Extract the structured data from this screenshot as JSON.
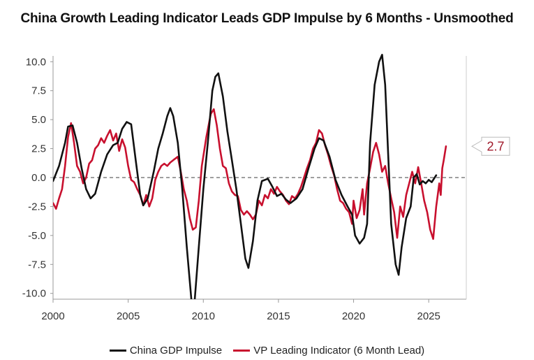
{
  "chart_data": {
    "type": "line",
    "title": "China Growth Leading Indicator Leads GDP Impulse by 6 Months - Unsmoothed",
    "xlabel": "",
    "ylabel": "",
    "xlim": [
      2000,
      2026.5
    ],
    "ylim": [
      -10.5,
      10.5
    ],
    "x_ticks": [
      "2000",
      "2005",
      "2010",
      "2015",
      "2020",
      "2025"
    ],
    "y_ticks": [
      "10.0",
      "7.5",
      "5.0",
      "2.5",
      "0.0",
      "-2.5",
      "-5.0",
      "-7.5",
      "-10.0"
    ],
    "reference_line": 0,
    "callout": {
      "label": "2.7",
      "value": 2.7
    },
    "series": [
      {
        "name": "China GDP Impulse",
        "color": "#111111",
        "points": [
          [
            2000.0,
            -0.3
          ],
          [
            2000.4,
            1.0
          ],
          [
            2000.8,
            3.0
          ],
          [
            2001.0,
            4.4
          ],
          [
            2001.3,
            4.5
          ],
          [
            2001.6,
            3.0
          ],
          [
            2001.9,
            0.8
          ],
          [
            2002.2,
            -1.0
          ],
          [
            2002.5,
            -1.8
          ],
          [
            2002.8,
            -1.4
          ],
          [
            2003.2,
            0.5
          ],
          [
            2003.6,
            2.0
          ],
          [
            2004.0,
            2.8
          ],
          [
            2004.3,
            3.0
          ],
          [
            2004.6,
            4.2
          ],
          [
            2004.9,
            4.8
          ],
          [
            2005.2,
            4.6
          ],
          [
            2005.5,
            1.5
          ],
          [
            2005.8,
            -1.5
          ],
          [
            2006.0,
            -2.4
          ],
          [
            2006.3,
            -1.8
          ],
          [
            2006.7,
            0.5
          ],
          [
            2007.0,
            2.5
          ],
          [
            2007.3,
            3.8
          ],
          [
            2007.6,
            5.3
          ],
          [
            2007.8,
            6.0
          ],
          [
            2008.0,
            5.3
          ],
          [
            2008.3,
            3.0
          ],
          [
            2008.6,
            -1.0
          ],
          [
            2008.9,
            -6.0
          ],
          [
            2009.2,
            -10.5
          ],
          [
            2009.4,
            -11.0
          ],
          [
            2009.7,
            -6.0
          ],
          [
            2010.0,
            -1.0
          ],
          [
            2010.3,
            3.0
          ],
          [
            2010.6,
            7.5
          ],
          [
            2010.8,
            8.7
          ],
          [
            2011.0,
            9.0
          ],
          [
            2011.3,
            7.0
          ],
          [
            2011.6,
            4.0
          ],
          [
            2011.9,
            1.5
          ],
          [
            2012.2,
            -1.0
          ],
          [
            2012.5,
            -4.0
          ],
          [
            2012.8,
            -7.0
          ],
          [
            2013.0,
            -7.8
          ],
          [
            2013.3,
            -5.5
          ],
          [
            2013.6,
            -2.0
          ],
          [
            2013.9,
            -0.3
          ],
          [
            2014.3,
            -0.1
          ],
          [
            2014.6,
            -0.8
          ],
          [
            2014.9,
            -1.6
          ],
          [
            2015.2,
            -1.4
          ],
          [
            2015.5,
            -1.9
          ],
          [
            2015.8,
            -2.2
          ],
          [
            2016.2,
            -1.8
          ],
          [
            2016.6,
            -1.0
          ],
          [
            2017.0,
            0.8
          ],
          [
            2017.4,
            2.5
          ],
          [
            2017.7,
            3.4
          ],
          [
            2018.0,
            3.2
          ],
          [
            2018.4,
            1.8
          ],
          [
            2018.8,
            -0.2
          ],
          [
            2019.2,
            -1.5
          ],
          [
            2019.6,
            -2.5
          ],
          [
            2019.9,
            -3.2
          ],
          [
            2020.1,
            -5.0
          ],
          [
            2020.4,
            -5.7
          ],
          [
            2020.7,
            -5.2
          ],
          [
            2020.9,
            -4.0
          ],
          [
            2021.1,
            3.0
          ],
          [
            2021.4,
            8.0
          ],
          [
            2021.7,
            10.0
          ],
          [
            2021.9,
            10.6
          ],
          [
            2022.1,
            8.0
          ],
          [
            2022.3,
            2.0
          ],
          [
            2022.5,
            -4.0
          ],
          [
            2022.8,
            -7.5
          ],
          [
            2023.0,
            -8.4
          ],
          [
            2023.2,
            -6.0
          ],
          [
            2023.5,
            -3.5
          ],
          [
            2023.8,
            -2.5
          ],
          [
            2024.0,
            0.0
          ],
          [
            2024.2,
            0.3
          ],
          [
            2024.4,
            -0.6
          ],
          [
            2024.6,
            -0.3
          ],
          [
            2024.8,
            -0.5
          ],
          [
            2025.0,
            -0.2
          ],
          [
            2025.2,
            -0.4
          ],
          [
            2025.5,
            0.2
          ]
        ]
      },
      {
        "name": "VP Leading Indicator (6 Month Lead)",
        "color": "#c8102e",
        "points": [
          [
            2000.0,
            -2.2
          ],
          [
            2000.2,
            -2.7
          ],
          [
            2000.4,
            -1.8
          ],
          [
            2000.6,
            -1.0
          ],
          [
            2000.8,
            1.0
          ],
          [
            2001.0,
            3.5
          ],
          [
            2001.2,
            4.7
          ],
          [
            2001.4,
            3.0
          ],
          [
            2001.6,
            1.0
          ],
          [
            2001.8,
            0.5
          ],
          [
            2002.0,
            -0.5
          ],
          [
            2002.2,
            0.0
          ],
          [
            2002.4,
            1.2
          ],
          [
            2002.6,
            1.5
          ],
          [
            2002.8,
            2.5
          ],
          [
            2003.0,
            2.8
          ],
          [
            2003.2,
            3.4
          ],
          [
            2003.4,
            3.0
          ],
          [
            2003.6,
            3.6
          ],
          [
            2003.8,
            4.1
          ],
          [
            2004.0,
            3.2
          ],
          [
            2004.2,
            3.8
          ],
          [
            2004.4,
            2.3
          ],
          [
            2004.6,
            3.3
          ],
          [
            2004.8,
            2.6
          ],
          [
            2005.0,
            1.0
          ],
          [
            2005.2,
            -0.2
          ],
          [
            2005.4,
            -0.4
          ],
          [
            2005.6,
            -1.0
          ],
          [
            2005.8,
            -1.5
          ],
          [
            2006.0,
            -2.4
          ],
          [
            2006.2,
            -1.5
          ],
          [
            2006.4,
            -2.5
          ],
          [
            2006.6,
            -1.8
          ],
          [
            2006.8,
            -0.2
          ],
          [
            2007.0,
            0.5
          ],
          [
            2007.2,
            1.0
          ],
          [
            2007.4,
            1.2
          ],
          [
            2007.6,
            1.0
          ],
          [
            2007.8,
            1.3
          ],
          [
            2008.0,
            1.5
          ],
          [
            2008.3,
            1.8
          ],
          [
            2008.5,
            0.5
          ],
          [
            2008.7,
            -1.0
          ],
          [
            2008.9,
            -2.0
          ],
          [
            2009.1,
            -3.5
          ],
          [
            2009.3,
            -4.5
          ],
          [
            2009.5,
            -4.3
          ],
          [
            2009.7,
            -2.0
          ],
          [
            2009.9,
            1.0
          ],
          [
            2010.2,
            3.5
          ],
          [
            2010.5,
            5.5
          ],
          [
            2010.7,
            5.9
          ],
          [
            2010.9,
            4.5
          ],
          [
            2011.1,
            2.5
          ],
          [
            2011.3,
            1.0
          ],
          [
            2011.5,
            0.8
          ],
          [
            2011.7,
            -0.5
          ],
          [
            2011.9,
            -1.2
          ],
          [
            2012.1,
            -1.5
          ],
          [
            2012.3,
            -1.6
          ],
          [
            2012.5,
            -2.8
          ],
          [
            2012.7,
            -3.2
          ],
          [
            2012.9,
            -2.9
          ],
          [
            2013.1,
            -3.2
          ],
          [
            2013.3,
            -3.6
          ],
          [
            2013.5,
            -3.2
          ],
          [
            2013.7,
            -2.0
          ],
          [
            2013.9,
            -2.4
          ],
          [
            2014.1,
            -1.5
          ],
          [
            2014.3,
            -1.8
          ],
          [
            2014.5,
            -1.0
          ],
          [
            2014.7,
            -1.4
          ],
          [
            2014.9,
            -0.8
          ],
          [
            2015.1,
            -1.2
          ],
          [
            2015.3,
            -1.5
          ],
          [
            2015.5,
            -2.0
          ],
          [
            2015.7,
            -2.3
          ],
          [
            2015.9,
            -1.6
          ],
          [
            2016.1,
            -1.8
          ],
          [
            2016.3,
            -1.4
          ],
          [
            2016.5,
            -0.8
          ],
          [
            2016.7,
            0.0
          ],
          [
            2016.9,
            0.8
          ],
          [
            2017.1,
            1.5
          ],
          [
            2017.3,
            2.5
          ],
          [
            2017.5,
            3.0
          ],
          [
            2017.7,
            4.1
          ],
          [
            2017.9,
            3.8
          ],
          [
            2018.1,
            2.8
          ],
          [
            2018.3,
            2.0
          ],
          [
            2018.5,
            1.0
          ],
          [
            2018.7,
            0.2
          ],
          [
            2018.9,
            -1.0
          ],
          [
            2019.1,
            -2.0
          ],
          [
            2019.3,
            -2.2
          ],
          [
            2019.5,
            -2.7
          ],
          [
            2019.7,
            -3.0
          ],
          [
            2019.9,
            -4.0
          ],
          [
            2020.0,
            -2.0
          ],
          [
            2020.2,
            -3.5
          ],
          [
            2020.4,
            -2.8
          ],
          [
            2020.6,
            -1.0
          ],
          [
            2020.7,
            -3.2
          ],
          [
            2020.9,
            -0.5
          ],
          [
            2021.1,
            0.8
          ],
          [
            2021.3,
            2.2
          ],
          [
            2021.5,
            3.0
          ],
          [
            2021.7,
            2.0
          ],
          [
            2021.9,
            0.5
          ],
          [
            2022.1,
            1.0
          ],
          [
            2022.3,
            -0.5
          ],
          [
            2022.5,
            -1.8
          ],
          [
            2022.7,
            -3.0
          ],
          [
            2022.9,
            -5.2
          ],
          [
            2023.1,
            -2.5
          ],
          [
            2023.3,
            -3.4
          ],
          [
            2023.5,
            -1.5
          ],
          [
            2023.7,
            -0.5
          ],
          [
            2023.9,
            0.5
          ],
          [
            2024.1,
            -0.5
          ],
          [
            2024.3,
            0.9
          ],
          [
            2024.5,
            -0.5
          ],
          [
            2024.7,
            -2.0
          ],
          [
            2024.9,
            -3.0
          ],
          [
            2025.1,
            -4.5
          ],
          [
            2025.3,
            -5.3
          ],
          [
            2025.5,
            -2.5
          ],
          [
            2025.7,
            -0.5
          ],
          [
            2025.8,
            -1.5
          ],
          [
            2025.9,
            0.8
          ],
          [
            2026.0,
            1.5
          ],
          [
            2026.15,
            2.7
          ]
        ]
      }
    ]
  }
}
